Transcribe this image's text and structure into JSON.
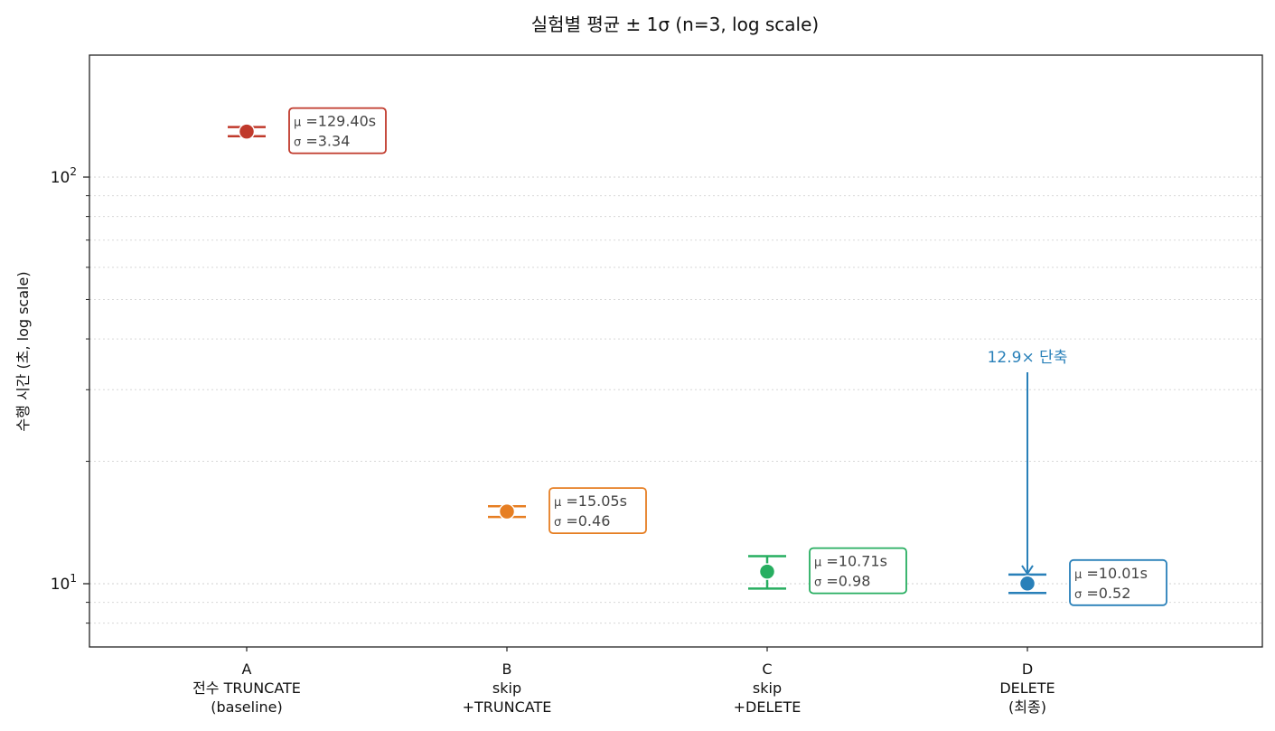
{
  "chart_data": {
    "type": "scatter",
    "subtype": "errorbar",
    "title": "실험별 평균 ± 1σ  (n=3, log scale)",
    "xlabel": "",
    "ylabel": "수행 시간 (초, log scale)",
    "yscale": "log",
    "ylim": [
      7,
      200
    ],
    "y_major_ticks": [
      {
        "value": 10,
        "label": "10",
        "exp": "1"
      },
      {
        "value": 100,
        "label": "10",
        "exp": "2"
      }
    ],
    "y_minor_ticks": [
      8,
      9,
      20,
      30,
      40,
      50,
      60,
      70,
      80,
      90
    ],
    "grid": "horizontal dotted (major + minor)",
    "legend": null,
    "categories": [
      {
        "code": "A",
        "line2": "전수 TRUNCATE",
        "line3": "(baseline)"
      },
      {
        "code": "B",
        "line2": "skip",
        "line3": "+TRUNCATE"
      },
      {
        "code": "C",
        "line2": "skip",
        "line3": "+DELETE"
      },
      {
        "code": "D",
        "line2": "DELETE",
        "line3": "(최종)"
      }
    ],
    "series": [
      {
        "name": "A",
        "mean": 129.4,
        "std": 3.34,
        "color": "#c0392b",
        "label_mu": "μ =129.40s",
        "label_sigma": "σ =3.34"
      },
      {
        "name": "B",
        "mean": 15.05,
        "std": 0.46,
        "color": "#e67e22",
        "label_mu": "μ =15.05s",
        "label_sigma": "σ =0.46"
      },
      {
        "name": "C",
        "mean": 10.71,
        "std": 0.98,
        "color": "#27ae60",
        "label_mu": "μ =10.71s",
        "label_sigma": "σ =0.98"
      },
      {
        "name": "D",
        "mean": 10.01,
        "std": 0.52,
        "color": "#2980b9",
        "label_mu": "μ =10.01s",
        "label_sigma": "σ =0.52"
      }
    ],
    "annotations": [
      {
        "text": "12.9× 단축",
        "target": "D",
        "color": "#2980b9",
        "type": "arrow"
      }
    ]
  }
}
